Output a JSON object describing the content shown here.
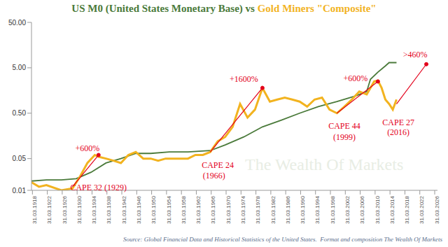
{
  "chart_data": {
    "type": "line",
    "title": "US M0 (United States Monetary Base) vs Gold Miners \"Composite\"",
    "source": "Source: Global Financial Data and Historical Statistics of the United States.  Format and composition The Wealth Of Markets",
    "watermark": "The Wealth Of Markets",
    "log": "y",
    "grid": false,
    "xlim": [
      1918,
      2027
    ],
    "xticks": [
      {
        "value": 1918.25,
        "label": "31.03.1918"
      },
      {
        "value": 1922.25,
        "label": "31.03.1922"
      },
      {
        "value": 1926.25,
        "label": "31.03.1926"
      },
      {
        "value": 1930.25,
        "label": "31.03.1930"
      },
      {
        "value": 1934.25,
        "label": "31.03.1934"
      },
      {
        "value": 1938.25,
        "label": "31.03.1938"
      },
      {
        "value": 1942.25,
        "label": "31.03.1942"
      },
      {
        "value": 1946.25,
        "label": "31.03.1946"
      },
      {
        "value": 1950.25,
        "label": "31.03.1950"
      },
      {
        "value": 1954.25,
        "label": "31.03.1954"
      },
      {
        "value": 1958.25,
        "label": "31.03.1958"
      },
      {
        "value": 1962.25,
        "label": "31.03.1962"
      },
      {
        "value": 1966.25,
        "label": "31.03.1966"
      },
      {
        "value": 1970.25,
        "label": "31.03.1970"
      },
      {
        "value": 1974.25,
        "label": "31.03.1974"
      },
      {
        "value": 1978.25,
        "label": "31.03.1978"
      },
      {
        "value": 1982.25,
        "label": "31.03.1982"
      },
      {
        "value": 1986.25,
        "label": "31.03.1986"
      },
      {
        "value": 1990.25,
        "label": "31.03.1990"
      },
      {
        "value": 1994.25,
        "label": "31.03.1994"
      },
      {
        "value": 1998.25,
        "label": "31.03.1998"
      },
      {
        "value": 2002.25,
        "label": "31.03.2002"
      },
      {
        "value": 2006.25,
        "label": "31.03.2006"
      },
      {
        "value": 2010.25,
        "label": "31.03.2010"
      },
      {
        "value": 2014.25,
        "label": "31.03.2014"
      },
      {
        "value": 2018.25,
        "label": "31.03.2018"
      },
      {
        "value": 2022.25,
        "label": "31.03.2022"
      },
      {
        "value": 2026.25,
        "label": "31.03.2026"
      }
    ],
    "ylim": [
      0.01,
      50
    ],
    "yticks": [
      0.01,
      0.05,
      {
        "value": 0.5,
        "label": "0.50"
      },
      {
        "value": 5,
        "label": "5.00"
      },
      {
        "value": 50,
        "label": "50.00"
      }
    ],
    "series": [
      {
        "name": "US M0 (United States Monetary Base)",
        "color": "#4a7a3a",
        "x": [
          1918,
          1922,
          1926,
          1930,
          1934,
          1938,
          1942,
          1946,
          1950,
          1955,
          1960,
          1966,
          1970,
          1975,
          1980,
          1985,
          1990,
          1995,
          2000,
          2005,
          2008,
          2009,
          2011,
          2013,
          2014,
          2016
        ],
        "values": [
          0.016,
          0.017,
          0.017,
          0.018,
          0.025,
          0.04,
          0.05,
          0.065,
          0.065,
          0.07,
          0.07,
          0.075,
          0.1,
          0.15,
          0.25,
          0.35,
          0.5,
          0.7,
          0.9,
          1.2,
          1.5,
          2.8,
          4,
          5.5,
          6.5,
          6.5
        ]
      },
      {
        "name": "Gold Miners \"Composite\"",
        "color": "#f2b31f",
        "x": [
          1918,
          1920,
          1922,
          1926,
          1929,
          1931,
          1933,
          1935,
          1936,
          1938,
          1940,
          1942,
          1944,
          1946,
          1948,
          1950,
          1952,
          1954,
          1956,
          1958,
          1960,
          1962,
          1964,
          1966,
          1968,
          1970,
          1972,
          1974,
          1976,
          1978,
          1980,
          1982,
          1984,
          1986,
          1988,
          1990,
          1992,
          1994,
          1996,
          1998,
          2000,
          2002,
          2004,
          2006,
          2008,
          2010,
          2011,
          2012,
          2013,
          2014,
          2015,
          2016
        ],
        "values": [
          0.015,
          0.012,
          0.013,
          0.01,
          0.011,
          0.02,
          0.04,
          0.06,
          0.055,
          0.05,
          0.045,
          0.04,
          0.06,
          0.07,
          0.05,
          0.05,
          0.045,
          0.05,
          0.05,
          0.05,
          0.05,
          0.06,
          0.06,
          0.07,
          0.12,
          0.15,
          0.25,
          0.8,
          0.4,
          0.6,
          1.8,
          0.9,
          1.0,
          1.1,
          1.0,
          0.9,
          0.7,
          1.0,
          1.1,
          0.6,
          0.5,
          0.7,
          1.0,
          1.5,
          1.3,
          2.5,
          2.6,
          1.8,
          1.0,
          0.8,
          0.6,
          1.0
        ]
      }
    ],
    "annotations": [
      {
        "text": "+600%",
        "x": 1933,
        "y": 0.085
      },
      {
        "text": "CAPE 32 (1929)",
        "x": 1936,
        "y": 0.0115
      },
      {
        "text": "+1600%",
        "x": 1975,
        "y": 2.8
      },
      {
        "text": "CAPE 24",
        "x": 1968,
        "y": 0.036
      },
      {
        "text": "(1966)",
        "x": 1967,
        "y": 0.021
      },
      {
        "text": "+600%",
        "x": 2005,
        "y": 3
      },
      {
        "text": "CAPE 44",
        "x": 2002,
        "y": 0.26
      },
      {
        "text": "(1999)",
        "x": 2002,
        "y": 0.15
      },
      {
        "text": "CAPE 27",
        "x": 2016.5,
        "y": 0.32
      },
      {
        "text": "(2016)",
        "x": 2016.5,
        "y": 0.19
      },
      {
        "text": ">460%",
        "x": 2021,
        "y": 10
      }
    ],
    "arrows": [
      {
        "x1": 1929,
        "y1": 0.012,
        "x2": 1936,
        "y2": 0.06
      },
      {
        "x1": 1966,
        "y1": 0.07,
        "x2": 1980,
        "y2": 1.8
      },
      {
        "x1": 2000,
        "y1": 0.5,
        "x2": 2011,
        "y2": 2.5
      },
      {
        "x1": 2016,
        "y1": 0.8,
        "x2": 2024,
        "y2": 6
      }
    ],
    "annotation_color": "#e3001b"
  }
}
